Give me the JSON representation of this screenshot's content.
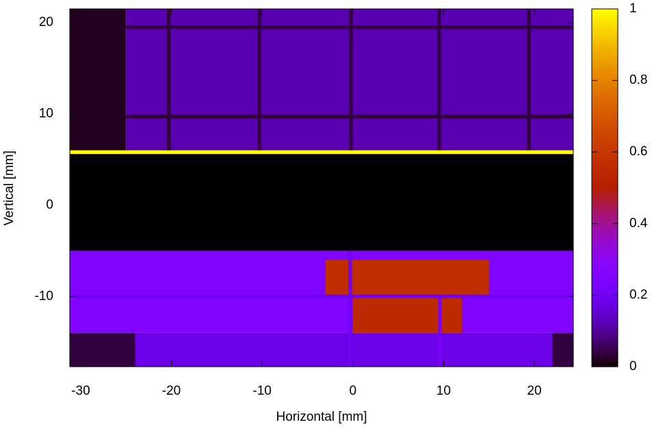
{
  "chart_data": {
    "type": "heatmap",
    "xlabel": "Horizontal [mm]",
    "ylabel": "Vertical [mm]",
    "xlim": [
      -31.2,
      24.3
    ],
    "ylim": [
      -17.7,
      21.5
    ],
    "xticks": [
      -30,
      -20,
      -10,
      0,
      10,
      20
    ],
    "yticks": [
      -10,
      0,
      10,
      20
    ],
    "cblim": [
      0,
      1
    ],
    "cbticks": [
      0,
      0.2,
      0.4,
      0.6,
      0.8,
      1
    ],
    "palette": "rgbformulae 7,5,15",
    "cells": [
      {
        "x": [
          -31.2,
          -25
        ],
        "y": [
          6,
          21.5
        ],
        "z": 0.02
      },
      {
        "x": [
          -25,
          24.3
        ],
        "y": [
          6,
          21.5
        ],
        "z": 0.12
      },
      {
        "x": [
          -20.5,
          -20.1
        ],
        "y": [
          6,
          21.5
        ],
        "z": 0.04
      },
      {
        "x": [
          -10.5,
          -10.1
        ],
        "y": [
          6,
          21.5
        ],
        "z": 0.04
      },
      {
        "x": [
          -0.4,
          0
        ],
        "y": [
          6,
          21.5
        ],
        "z": 0.04
      },
      {
        "x": [
          9.3,
          9.7
        ],
        "y": [
          6,
          21.5
        ],
        "z": 0.04
      },
      {
        "x": [
          19.2,
          19.6
        ],
        "y": [
          6,
          21.5
        ],
        "z": 0.04
      },
      {
        "x": [
          -25,
          24.3
        ],
        "y": [
          19.3,
          19.7
        ],
        "z": 0.04
      },
      {
        "x": [
          -25,
          24.3
        ],
        "y": [
          9.5,
          9.9
        ],
        "z": 0.04
      },
      {
        "x": [
          -31.2,
          24.3
        ],
        "y": [
          5.6,
          6
        ],
        "z": 1
      },
      {
        "x": [
          -31.2,
          24.3
        ],
        "y": [
          -5,
          5.6
        ],
        "z": 0
      },
      {
        "x": [
          -31.2,
          24.3
        ],
        "y": [
          -14,
          -5
        ],
        "z": 0.25
      },
      {
        "x": [
          -31.2,
          -24
        ],
        "y": [
          -17.7,
          -14
        ],
        "z": 0.04
      },
      {
        "x": [
          -24,
          22
        ],
        "y": [
          -17.7,
          -14
        ],
        "z": 0.18
      },
      {
        "x": [
          22,
          24.3
        ],
        "y": [
          -17.7,
          -14
        ],
        "z": 0.04
      },
      {
        "x": [
          -3,
          15
        ],
        "y": [
          -10,
          -6
        ],
        "z": 0.56
      },
      {
        "x": [
          0,
          12
        ],
        "y": [
          -14,
          -10
        ],
        "z": 0.55
      },
      {
        "x": [
          -31.2,
          24.3
        ],
        "y": [
          -10.2,
          -9.8
        ],
        "z": 0.2
      },
      {
        "x": [
          -0.5,
          -0.1
        ],
        "y": [
          -17.7,
          -5
        ],
        "z": 0.2
      },
      {
        "x": [
          9.4,
          9.8
        ],
        "y": [
          -17.7,
          -10
        ],
        "z": 0.22
      }
    ]
  }
}
